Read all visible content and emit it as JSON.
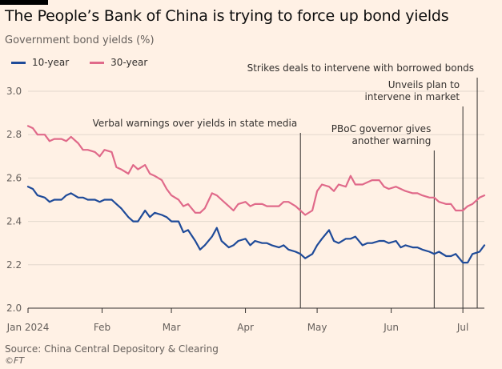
{
  "header": {
    "title": "The People’s Bank of China is trying to force up bond yields",
    "subtitle": "Government bond yields (%)"
  },
  "footer": {
    "source": "Source: China Central Depository & Clearing",
    "credit": "©FT"
  },
  "colors": {
    "10-year": "#1f4b99",
    "30-year": "#e06a8a",
    "grid": "#e3d8cd",
    "axis": "#33302e",
    "annotation": "#33302e"
  },
  "chart_data": {
    "type": "line",
    "title": "The People’s Bank of China is trying to force up bond yields",
    "subtitle": "Government bond yields (%)",
    "ylim": [
      2.0,
      3.0
    ],
    "yticks": [
      2.0,
      2.2,
      2.4,
      2.6,
      2.8,
      3.0
    ],
    "ytick_labels": [
      "2.0",
      "2.2",
      "2.4",
      "2.6",
      "2.8",
      "3.0"
    ],
    "xlim": [
      "2024-01-01",
      "2024-07-10"
    ],
    "xticks": [
      "2024-01-01",
      "2024-02-01",
      "2024-03-01",
      "2024-04-01",
      "2024-05-01",
      "2024-06-01",
      "2024-07-01"
    ],
    "xtick_labels": [
      "Jan 2024",
      "Feb",
      "Mar",
      "Apr",
      "May",
      "Jun",
      "Jul"
    ],
    "legend_position": "top-left",
    "grid": true,
    "series": [
      {
        "name": "10-year",
        "color": "#1f4b99",
        "x": [
          "2024-01-01",
          "2024-01-03",
          "2024-01-05",
          "2024-01-08",
          "2024-01-10",
          "2024-01-12",
          "2024-01-15",
          "2024-01-17",
          "2024-01-19",
          "2024-01-22",
          "2024-01-24",
          "2024-01-26",
          "2024-01-29",
          "2024-01-31",
          "2024-02-02",
          "2024-02-05",
          "2024-02-07",
          "2024-02-09",
          "2024-02-12",
          "2024-02-14",
          "2024-02-16",
          "2024-02-19",
          "2024-02-21",
          "2024-02-23",
          "2024-02-26",
          "2024-02-28",
          "2024-03-01",
          "2024-03-04",
          "2024-03-06",
          "2024-03-08",
          "2024-03-11",
          "2024-03-13",
          "2024-03-15",
          "2024-03-18",
          "2024-03-20",
          "2024-03-22",
          "2024-03-25",
          "2024-03-27",
          "2024-03-29",
          "2024-04-01",
          "2024-04-03",
          "2024-04-05",
          "2024-04-08",
          "2024-04-10",
          "2024-04-12",
          "2024-04-15",
          "2024-04-17",
          "2024-04-19",
          "2024-04-22",
          "2024-04-24",
          "2024-04-26",
          "2024-04-29",
          "2024-05-01",
          "2024-05-03",
          "2024-05-06",
          "2024-05-08",
          "2024-05-10",
          "2024-05-13",
          "2024-05-15",
          "2024-05-17",
          "2024-05-20",
          "2024-05-22",
          "2024-05-24",
          "2024-05-27",
          "2024-05-29",
          "2024-05-31",
          "2024-06-03",
          "2024-06-05",
          "2024-06-07",
          "2024-06-10",
          "2024-06-12",
          "2024-06-14",
          "2024-06-17",
          "2024-06-19",
          "2024-06-21",
          "2024-06-24",
          "2024-06-26",
          "2024-06-28",
          "2024-07-01",
          "2024-07-03",
          "2024-07-05",
          "2024-07-08",
          "2024-07-10"
        ],
        "y": [
          2.56,
          2.55,
          2.52,
          2.51,
          2.49,
          2.5,
          2.5,
          2.52,
          2.53,
          2.51,
          2.51,
          2.5,
          2.5,
          2.49,
          2.5,
          2.5,
          2.48,
          2.46,
          2.42,
          2.4,
          2.4,
          2.45,
          2.42,
          2.44,
          2.43,
          2.42,
          2.4,
          2.4,
          2.35,
          2.36,
          2.31,
          2.27,
          2.29,
          2.33,
          2.37,
          2.31,
          2.28,
          2.29,
          2.31,
          2.32,
          2.29,
          2.31,
          2.3,
          2.3,
          2.29,
          2.28,
          2.29,
          2.27,
          2.26,
          2.25,
          2.23,
          2.25,
          2.29,
          2.32,
          2.36,
          2.31,
          2.3,
          2.32,
          2.32,
          2.33,
          2.29,
          2.3,
          2.3,
          2.31,
          2.31,
          2.3,
          2.31,
          2.28,
          2.29,
          2.28,
          2.28,
          2.27,
          2.26,
          2.25,
          2.26,
          2.24,
          2.24,
          2.25,
          2.21,
          2.21,
          2.25,
          2.26,
          2.29
        ]
      },
      {
        "name": "30-year",
        "color": "#e06a8a",
        "x": [
          "2024-01-01",
          "2024-01-03",
          "2024-01-05",
          "2024-01-08",
          "2024-01-10",
          "2024-01-12",
          "2024-01-15",
          "2024-01-17",
          "2024-01-19",
          "2024-01-22",
          "2024-01-24",
          "2024-01-26",
          "2024-01-29",
          "2024-01-31",
          "2024-02-02",
          "2024-02-05",
          "2024-02-07",
          "2024-02-09",
          "2024-02-12",
          "2024-02-14",
          "2024-02-16",
          "2024-02-19",
          "2024-02-21",
          "2024-02-23",
          "2024-02-26",
          "2024-02-28",
          "2024-03-01",
          "2024-03-04",
          "2024-03-06",
          "2024-03-08",
          "2024-03-11",
          "2024-03-13",
          "2024-03-15",
          "2024-03-18",
          "2024-03-20",
          "2024-03-22",
          "2024-03-25",
          "2024-03-27",
          "2024-03-29",
          "2024-04-01",
          "2024-04-03",
          "2024-04-05",
          "2024-04-08",
          "2024-04-10",
          "2024-04-12",
          "2024-04-15",
          "2024-04-17",
          "2024-04-19",
          "2024-04-22",
          "2024-04-24",
          "2024-04-26",
          "2024-04-29",
          "2024-05-01",
          "2024-05-03",
          "2024-05-06",
          "2024-05-08",
          "2024-05-10",
          "2024-05-13",
          "2024-05-15",
          "2024-05-17",
          "2024-05-20",
          "2024-05-22",
          "2024-05-24",
          "2024-05-27",
          "2024-05-29",
          "2024-05-31",
          "2024-06-03",
          "2024-06-05",
          "2024-06-07",
          "2024-06-10",
          "2024-06-12",
          "2024-06-14",
          "2024-06-17",
          "2024-06-19",
          "2024-06-21",
          "2024-06-24",
          "2024-06-26",
          "2024-06-28",
          "2024-07-01",
          "2024-07-03",
          "2024-07-05",
          "2024-07-08",
          "2024-07-10"
        ],
        "y": [
          2.84,
          2.83,
          2.8,
          2.8,
          2.77,
          2.78,
          2.78,
          2.77,
          2.79,
          2.76,
          2.73,
          2.73,
          2.72,
          2.7,
          2.73,
          2.72,
          2.65,
          2.64,
          2.62,
          2.66,
          2.64,
          2.66,
          2.62,
          2.61,
          2.59,
          2.55,
          2.52,
          2.5,
          2.47,
          2.48,
          2.44,
          2.44,
          2.46,
          2.53,
          2.52,
          2.5,
          2.47,
          2.45,
          2.48,
          2.49,
          2.47,
          2.48,
          2.48,
          2.47,
          2.47,
          2.47,
          2.49,
          2.49,
          2.47,
          2.45,
          2.43,
          2.45,
          2.54,
          2.57,
          2.56,
          2.54,
          2.57,
          2.56,
          2.61,
          2.57,
          2.57,
          2.58,
          2.59,
          2.59,
          2.56,
          2.55,
          2.56,
          2.55,
          2.54,
          2.53,
          2.53,
          2.52,
          2.51,
          2.51,
          2.49,
          2.48,
          2.48,
          2.45,
          2.45,
          2.47,
          2.48,
          2.51,
          2.52
        ]
      }
    ],
    "annotations": [
      {
        "date": "2024-04-24",
        "text_lines": [
          "Verbal warnings over yields in state media"
        ]
      },
      {
        "date": "2024-06-19",
        "text_lines": [
          "PBoC governor gives",
          "another warning"
        ]
      },
      {
        "date": "2024-07-01",
        "text_lines": [
          "Unveils plan to",
          "intervene in market"
        ]
      },
      {
        "date": "2024-07-07",
        "text_lines": [
          "Strikes deals to intervene with borrowed bonds"
        ]
      }
    ]
  }
}
